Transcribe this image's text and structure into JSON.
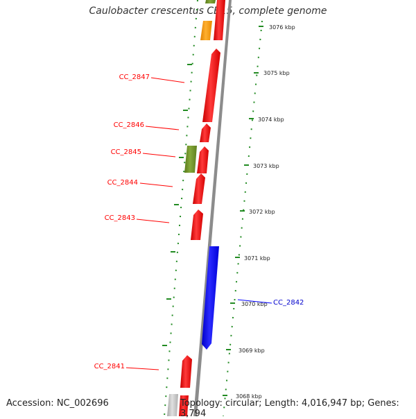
{
  "title": "Caulobacter crescentus CB15, complete genome",
  "footer": {
    "accession": "Accession: NC_002696",
    "topology": "Topology: circular; Length: 4,016,947 bp; Genes: 3,794"
  },
  "colors": {
    "forward_strand": "#ff0000",
    "reverse_strand": "#0000ff",
    "ruler": "#228b22",
    "backbone": "#8c8c8c",
    "gene_green": "#6b8e23",
    "gene_orange": "#ff9900",
    "gene_gray": "#c0c0c0"
  },
  "kbp_ticks": [
    "3076 kbp",
    "3075 kbp",
    "3074 kbp",
    "3073 kbp",
    "3072 kbp",
    "3071 kbp",
    "3070 kbp",
    "3069 kbp",
    "3068 kbp"
  ],
  "gene_labels": [
    "CC_2847",
    "CC_2846",
    "CC_2845",
    "CC_2844",
    "CC_2843",
    "CC_2842",
    "CC_2841"
  ]
}
